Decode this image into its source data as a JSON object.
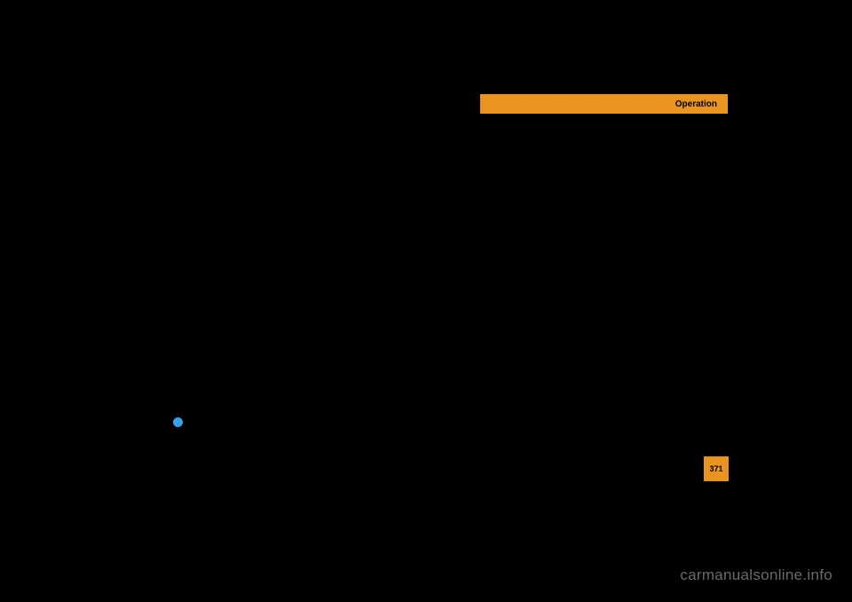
{
  "header": {
    "label": "Operation"
  },
  "page": {
    "number": "371"
  },
  "watermark": {
    "text": "carmanualsonline.info"
  },
  "colors": {
    "background": "#000000",
    "accent": "#e8941f",
    "bullet": "#3da0e6",
    "watermark": "#6a6a6a"
  }
}
